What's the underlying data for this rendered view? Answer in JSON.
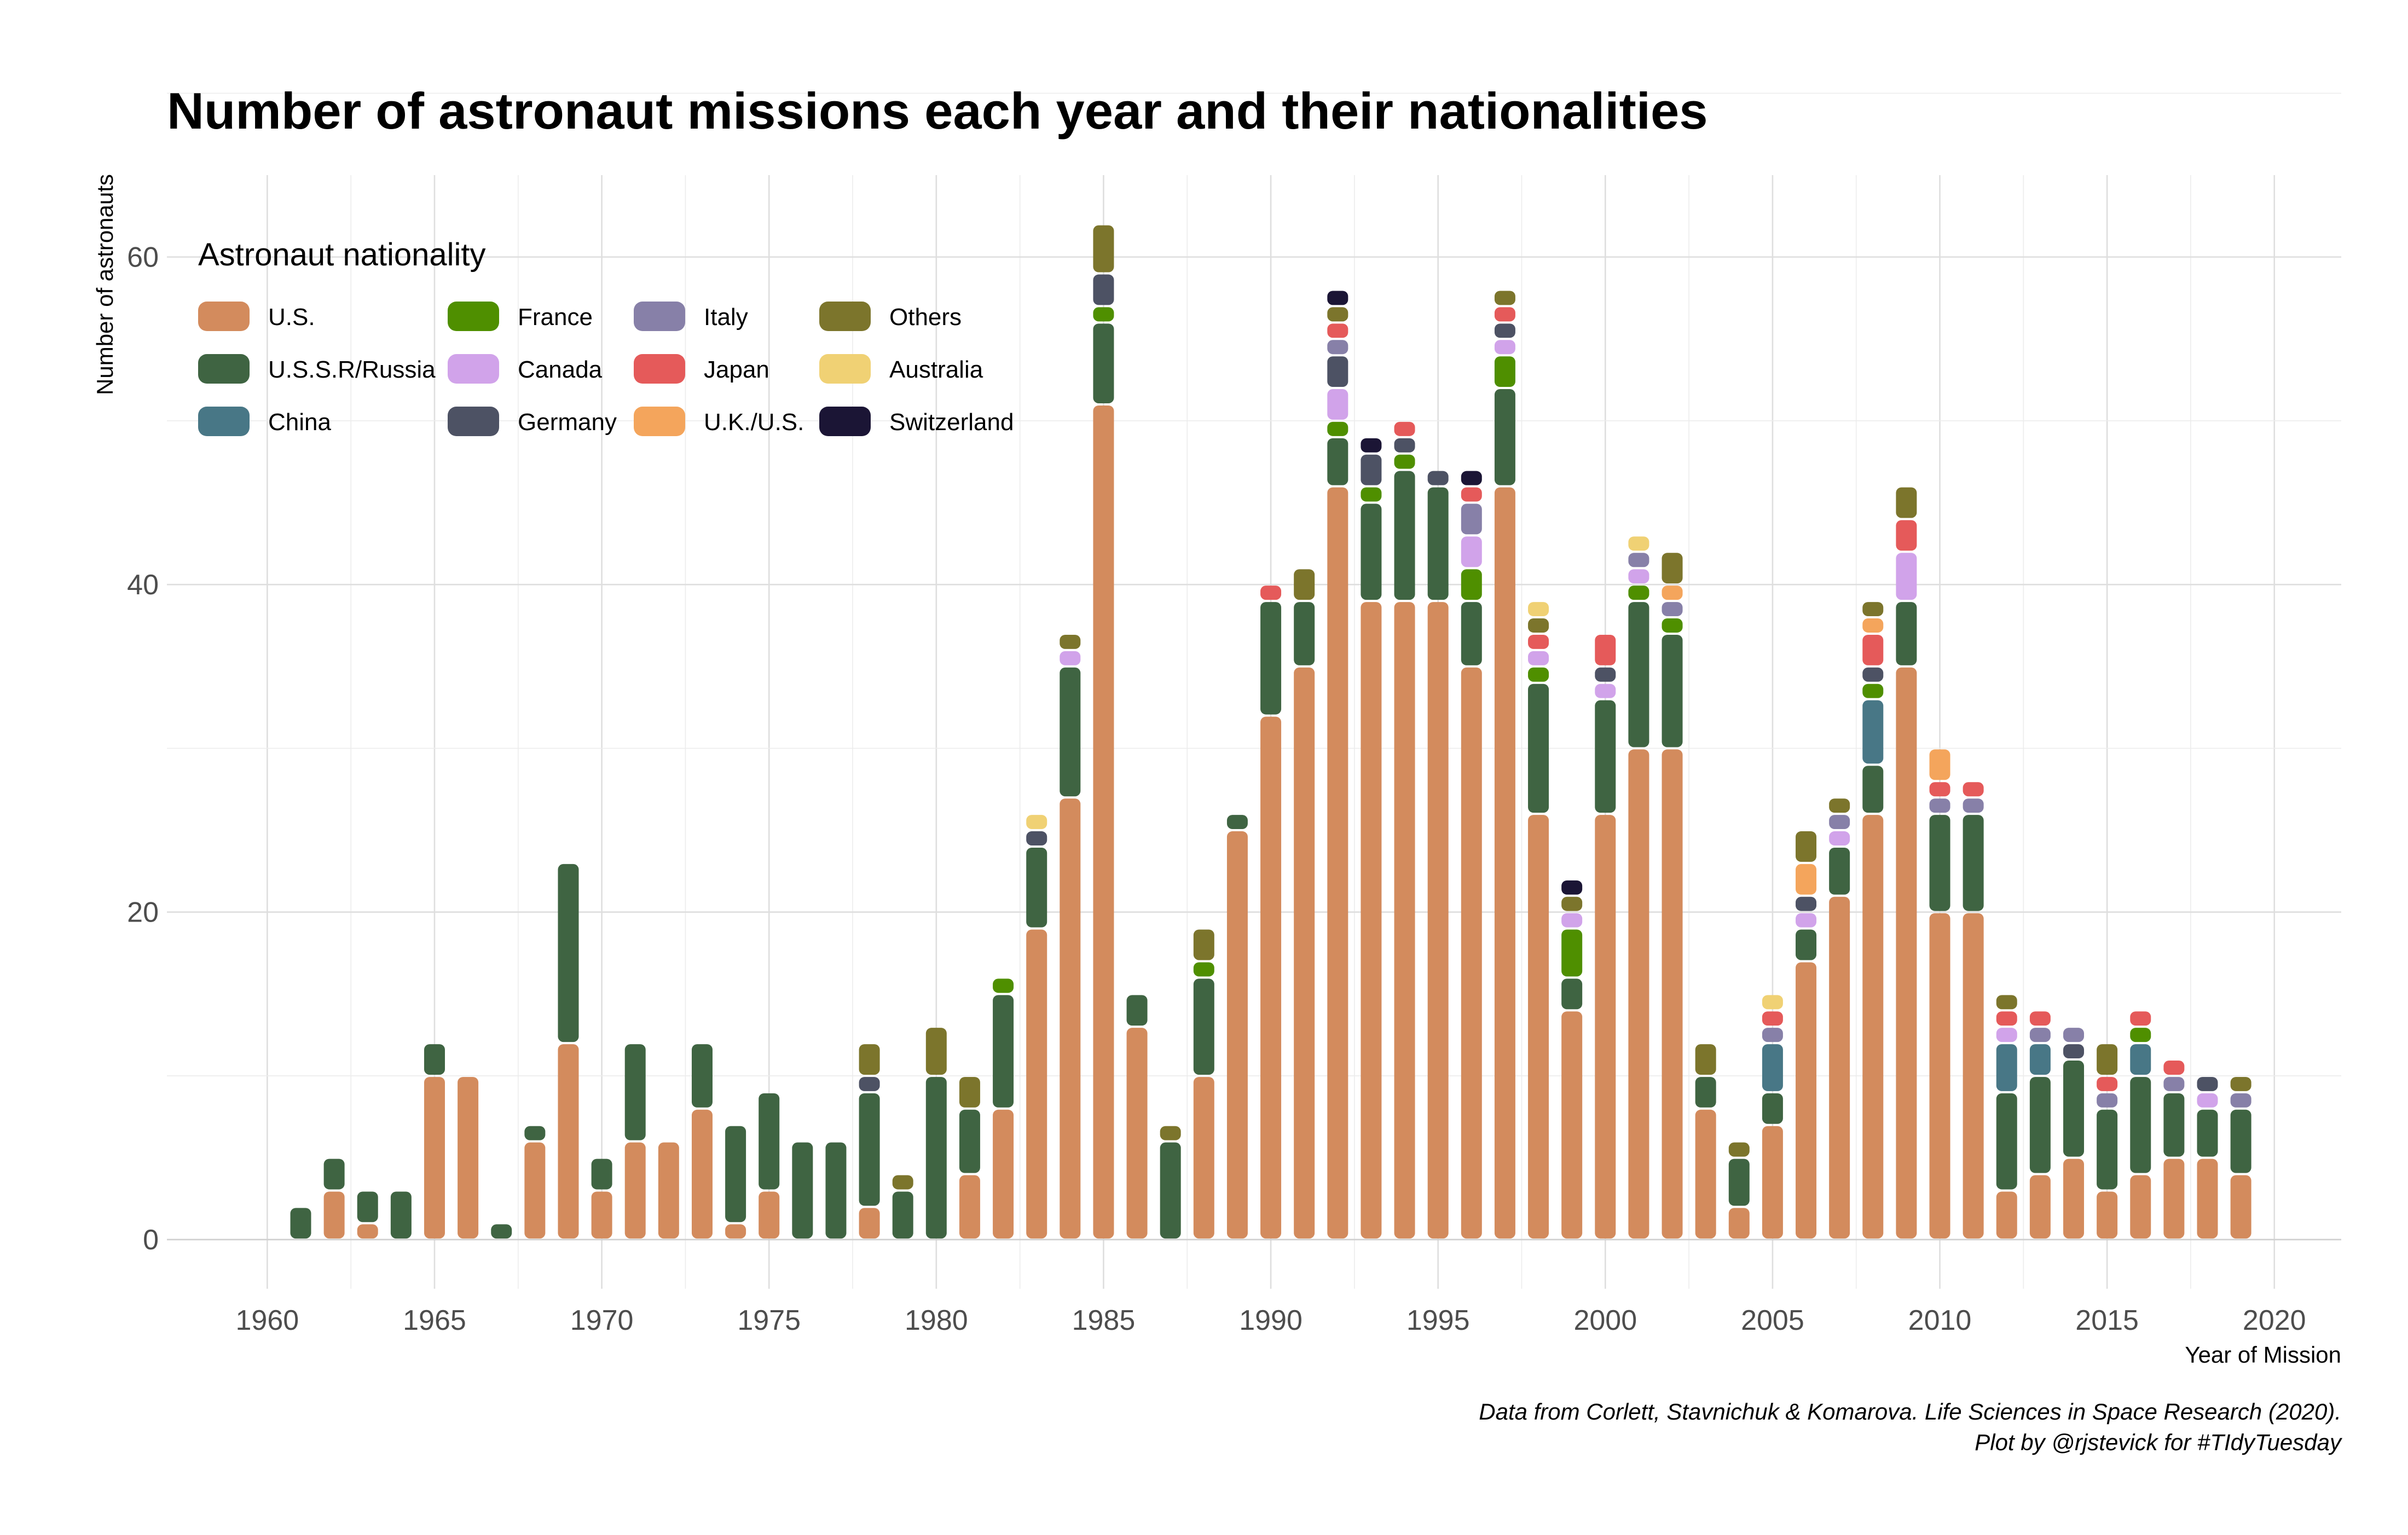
{
  "chart_data": {
    "type": "bar",
    "stacked": true,
    "title": "Number of astronaut missions each year and their nationalities",
    "xlabel": "Year of Mission",
    "ylabel": "Number of astronauts",
    "xlim": [
      1957,
      2022
    ],
    "ylim": [
      -3,
      65
    ],
    "x_ticks": [
      1960,
      1965,
      1970,
      1975,
      1980,
      1985,
      1990,
      1995,
      2000,
      2005,
      2010,
      2015,
      2020
    ],
    "y_ticks": [
      0,
      20,
      40,
      60
    ],
    "grid": true,
    "legend": {
      "title": "Astronaut nationality",
      "position": "top-left",
      "columns": 4
    },
    "caption": [
      "Data from Corlett, Stavnichuk & Komarova. Life Sciences in Space Research (2020).",
      "Plot by @rjstevick for #TIdyTuesday"
    ],
    "series_order": [
      "U.S.",
      "U.S.S.R/Russia",
      "China",
      "France",
      "Canada",
      "Germany",
      "Italy",
      "Japan",
      "U.K./U.S.",
      "Others",
      "Australia",
      "Switzerland"
    ],
    "colors": {
      "U.S.": "#d38b5d",
      "U.S.S.R/Russia": "#3f6442",
      "China": "#487786",
      "France": "#4f8f00",
      "Canada": "#d1a3ea",
      "Germany": "#4d5264",
      "Italy": "#8780a8",
      "Japan": "#e55a5a",
      "U.K./U.S.": "#f4a55c",
      "Others": "#7c752c",
      "Australia": "#f0d174",
      "Switzerland": "#1b1535"
    },
    "years": [
      {
        "year": 1961,
        "counts": {
          "U.S.S.R/Russia": 2
        }
      },
      {
        "year": 1962,
        "counts": {
          "U.S.": 3,
          "U.S.S.R/Russia": 2
        }
      },
      {
        "year": 1963,
        "counts": {
          "U.S.": 1,
          "U.S.S.R/Russia": 2
        }
      },
      {
        "year": 1964,
        "counts": {
          "U.S.S.R/Russia": 3
        }
      },
      {
        "year": 1965,
        "counts": {
          "U.S.": 10,
          "U.S.S.R/Russia": 2
        }
      },
      {
        "year": 1966,
        "counts": {
          "U.S.": 10
        }
      },
      {
        "year": 1967,
        "counts": {
          "U.S.S.R/Russia": 1
        }
      },
      {
        "year": 1968,
        "counts": {
          "U.S.": 6,
          "U.S.S.R/Russia": 1
        }
      },
      {
        "year": 1969,
        "counts": {
          "U.S.": 12,
          "U.S.S.R/Russia": 11
        }
      },
      {
        "year": 1970,
        "counts": {
          "U.S.": 3,
          "U.S.S.R/Russia": 2
        }
      },
      {
        "year": 1971,
        "counts": {
          "U.S.": 6,
          "U.S.S.R/Russia": 6
        }
      },
      {
        "year": 1972,
        "counts": {
          "U.S.": 6
        }
      },
      {
        "year": 1973,
        "counts": {
          "U.S.": 8,
          "U.S.S.R/Russia": 4
        }
      },
      {
        "year": 1974,
        "counts": {
          "U.S.": 1,
          "U.S.S.R/Russia": 6
        }
      },
      {
        "year": 1975,
        "counts": {
          "U.S.": 3,
          "U.S.S.R/Russia": 6
        }
      },
      {
        "year": 1976,
        "counts": {
          "U.S.S.R/Russia": 6
        }
      },
      {
        "year": 1977,
        "counts": {
          "U.S.S.R/Russia": 6
        }
      },
      {
        "year": 1978,
        "counts": {
          "U.S.": 2,
          "U.S.S.R/Russia": 7,
          "Germany": 1,
          "Others": 2
        }
      },
      {
        "year": 1979,
        "counts": {
          "U.S.S.R/Russia": 3,
          "Others": 1
        }
      },
      {
        "year": 1980,
        "counts": {
          "U.S.S.R/Russia": 10,
          "Others": 3
        }
      },
      {
        "year": 1981,
        "counts": {
          "U.S.": 4,
          "U.S.S.R/Russia": 4,
          "Others": 2
        }
      },
      {
        "year": 1982,
        "counts": {
          "U.S.": 8,
          "U.S.S.R/Russia": 7,
          "France": 1
        }
      },
      {
        "year": 1983,
        "counts": {
          "U.S.": 19,
          "U.S.S.R/Russia": 5,
          "Germany": 1,
          "Australia": 1
        }
      },
      {
        "year": 1984,
        "counts": {
          "U.S.": 27,
          "U.S.S.R/Russia": 8,
          "Canada": 1,
          "Others": 1
        }
      },
      {
        "year": 1985,
        "counts": {
          "U.S.": 51,
          "U.S.S.R/Russia": 5,
          "France": 1,
          "Germany": 2,
          "Others": 3
        }
      },
      {
        "year": 1986,
        "counts": {
          "U.S.": 13,
          "U.S.S.R/Russia": 2
        }
      },
      {
        "year": 1987,
        "counts": {
          "U.S.S.R/Russia": 6,
          "Others": 1
        }
      },
      {
        "year": 1988,
        "counts": {
          "U.S.": 10,
          "U.S.S.R/Russia": 6,
          "France": 1,
          "Others": 2
        }
      },
      {
        "year": 1989,
        "counts": {
          "U.S.": 25,
          "U.S.S.R/Russia": 1
        }
      },
      {
        "year": 1990,
        "counts": {
          "U.S.": 32,
          "U.S.S.R/Russia": 7,
          "Japan": 1
        }
      },
      {
        "year": 1991,
        "counts": {
          "U.S.": 35,
          "U.S.S.R/Russia": 4,
          "Others": 2
        }
      },
      {
        "year": 1992,
        "counts": {
          "U.S.": 46,
          "U.S.S.R/Russia": 3,
          "France": 1,
          "Canada": 2,
          "Germany": 2,
          "Italy": 1,
          "Japan": 1,
          "Others": 1,
          "Switzerland": 1
        }
      },
      {
        "year": 1993,
        "counts": {
          "U.S.": 39,
          "U.S.S.R/Russia": 6,
          "France": 1,
          "Germany": 2,
          "Switzerland": 1
        }
      },
      {
        "year": 1994,
        "counts": {
          "U.S.": 39,
          "U.S.S.R/Russia": 8,
          "France": 1,
          "Germany": 1,
          "Japan": 1
        }
      },
      {
        "year": 1995,
        "counts": {
          "U.S.": 39,
          "U.S.S.R/Russia": 7,
          "Germany": 1
        }
      },
      {
        "year": 1996,
        "counts": {
          "U.S.": 35,
          "U.S.S.R/Russia": 4,
          "France": 2,
          "Canada": 2,
          "Italy": 2,
          "Japan": 1,
          "Switzerland": 1
        }
      },
      {
        "year": 1997,
        "counts": {
          "U.S.": 46,
          "U.S.S.R/Russia": 6,
          "France": 2,
          "Canada": 1,
          "Germany": 1,
          "Japan": 1,
          "Others": 1
        }
      },
      {
        "year": 1998,
        "counts": {
          "U.S.": 26,
          "U.S.S.R/Russia": 8,
          "France": 1,
          "Canada": 1,
          "Japan": 1,
          "Others": 1,
          "Australia": 1
        }
      },
      {
        "year": 1999,
        "counts": {
          "U.S.": 14,
          "U.S.S.R/Russia": 2,
          "France": 3,
          "Canada": 1,
          "Others": 1,
          "Switzerland": 1
        }
      },
      {
        "year": 2000,
        "counts": {
          "U.S.": 26,
          "U.S.S.R/Russia": 7,
          "Canada": 1,
          "Germany": 1,
          "Japan": 2
        }
      },
      {
        "year": 2001,
        "counts": {
          "U.S.": 30,
          "U.S.S.R/Russia": 9,
          "France": 1,
          "Canada": 1,
          "Italy": 1,
          "Australia": 1
        }
      },
      {
        "year": 2002,
        "counts": {
          "U.S.": 30,
          "U.S.S.R/Russia": 7,
          "France": 1,
          "Italy": 1,
          "U.K./U.S.": 1,
          "Others": 2
        }
      },
      {
        "year": 2003,
        "counts": {
          "U.S.": 8,
          "U.S.S.R/Russia": 2,
          "Others": 2
        }
      },
      {
        "year": 2004,
        "counts": {
          "U.S.": 2,
          "U.S.S.R/Russia": 3,
          "Others": 1
        }
      },
      {
        "year": 2005,
        "counts": {
          "U.S.": 7,
          "U.S.S.R/Russia": 2,
          "China": 3,
          "Italy": 1,
          "Japan": 1,
          "Australia": 1
        }
      },
      {
        "year": 2006,
        "counts": {
          "U.S.": 17,
          "U.S.S.R/Russia": 2,
          "Canada": 1,
          "Germany": 1,
          "U.K./U.S.": 2,
          "Others": 2
        }
      },
      {
        "year": 2007,
        "counts": {
          "U.S.": 21,
          "U.S.S.R/Russia": 3,
          "Canada": 1,
          "Italy": 1,
          "Others": 1
        }
      },
      {
        "year": 2008,
        "counts": {
          "U.S.": 26,
          "U.S.S.R/Russia": 3,
          "China": 4,
          "France": 1,
          "Germany": 1,
          "Japan": 2,
          "U.K./U.S.": 1,
          "Others": 1
        }
      },
      {
        "year": 2009,
        "counts": {
          "U.S.": 35,
          "U.S.S.R/Russia": 4,
          "Canada": 3,
          "Japan": 2,
          "Others": 2
        }
      },
      {
        "year": 2010,
        "counts": {
          "U.S.": 20,
          "U.S.S.R/Russia": 6,
          "Italy": 1,
          "Japan": 1,
          "U.K./U.S.": 2
        }
      },
      {
        "year": 2011,
        "counts": {
          "U.S.": 20,
          "U.S.S.R/Russia": 6,
          "Italy": 1,
          "Japan": 1
        }
      },
      {
        "year": 2012,
        "counts": {
          "U.S.": 3,
          "U.S.S.R/Russia": 6,
          "China": 3,
          "Canada": 1,
          "Japan": 1,
          "Others": 1
        }
      },
      {
        "year": 2013,
        "counts": {
          "U.S.": 4,
          "U.S.S.R/Russia": 6,
          "China": 2,
          "Italy": 1,
          "Japan": 1
        }
      },
      {
        "year": 2014,
        "counts": {
          "U.S.": 5,
          "U.S.S.R/Russia": 6,
          "Germany": 1,
          "Italy": 1
        }
      },
      {
        "year": 2015,
        "counts": {
          "U.S.": 3,
          "U.S.S.R/Russia": 5,
          "Italy": 1,
          "Japan": 1,
          "Others": 2
        }
      },
      {
        "year": 2016,
        "counts": {
          "U.S.": 4,
          "U.S.S.R/Russia": 6,
          "China": 2,
          "France": 1,
          "Japan": 1
        }
      },
      {
        "year": 2017,
        "counts": {
          "U.S.": 5,
          "U.S.S.R/Russia": 4,
          "Italy": 1,
          "Japan": 1
        }
      },
      {
        "year": 2018,
        "counts": {
          "U.S.": 5,
          "U.S.S.R/Russia": 3,
          "Canada": 1,
          "Germany": 1
        }
      },
      {
        "year": 2019,
        "counts": {
          "U.S.": 4,
          "U.S.S.R/Russia": 4,
          "Italy": 1,
          "Others": 1
        }
      }
    ]
  }
}
